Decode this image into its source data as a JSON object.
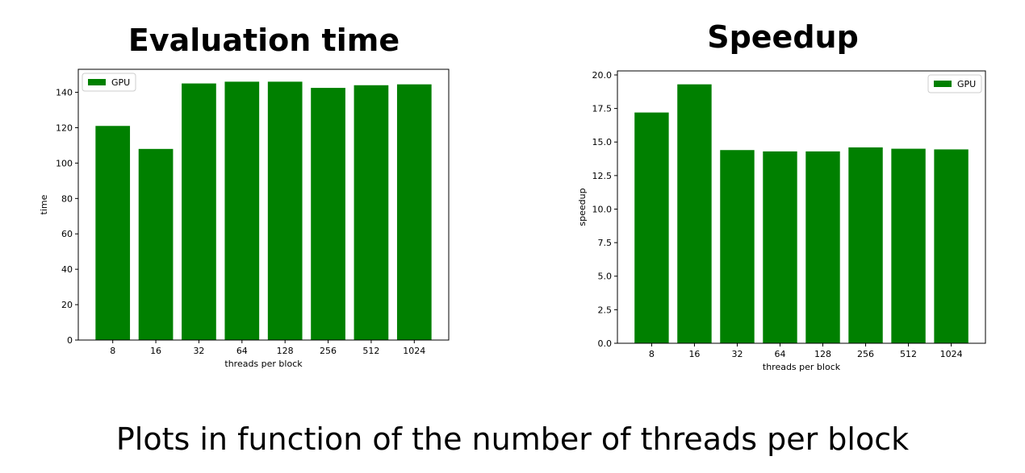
{
  "caption": "Plots in function of the number of threads per block",
  "colors": {
    "bar": "#008000"
  },
  "chart_data": [
    {
      "type": "bar",
      "title": "Evaluation time",
      "xlabel": "threads per block",
      "ylabel": "time",
      "categories": [
        "8",
        "16",
        "32",
        "64",
        "128",
        "256",
        "512",
        "1024"
      ],
      "series": [
        {
          "name": "GPU",
          "values": [
            121,
            108,
            145,
            146,
            146,
            142.5,
            144,
            144.5
          ]
        }
      ],
      "ylim": [
        0,
        153
      ],
      "yticks": [
        0,
        20,
        40,
        60,
        80,
        100,
        120,
        140
      ],
      "ytick_labels": [
        "0",
        "20",
        "40",
        "60",
        "80",
        "100",
        "120",
        "140"
      ],
      "legend": "top-left",
      "grid": false
    },
    {
      "type": "bar",
      "title": "Speedup",
      "xlabel": "threads per block",
      "ylabel": "speedup",
      "categories": [
        "8",
        "16",
        "32",
        "64",
        "128",
        "256",
        "512",
        "1024"
      ],
      "series": [
        {
          "name": "GPU",
          "values": [
            17.2,
            19.3,
            14.4,
            14.3,
            14.3,
            14.6,
            14.5,
            14.45
          ]
        }
      ],
      "ylim": [
        0,
        20.3
      ],
      "yticks": [
        0,
        2.5,
        5,
        7.5,
        10,
        12.5,
        15,
        17.5,
        20
      ],
      "ytick_labels": [
        "0.0",
        "2.5",
        "5.0",
        "7.5",
        "10.0",
        "12.5",
        "15.0",
        "17.5",
        "20.0"
      ],
      "legend": "top-right",
      "grid": false
    }
  ]
}
